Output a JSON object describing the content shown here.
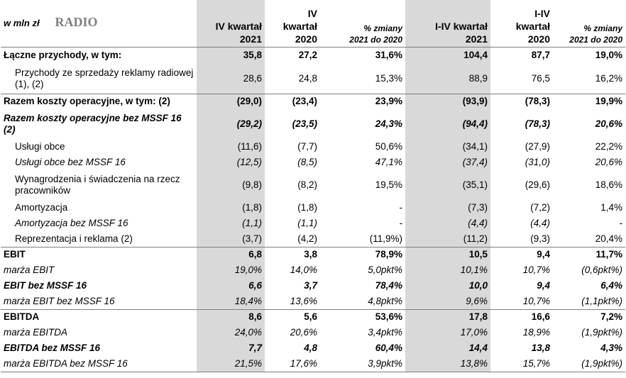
{
  "header": {
    "unit": "w mln zł",
    "segment": "RADIO",
    "cols": [
      [
        "IV kwartał",
        "2021"
      ],
      [
        "IV",
        "kwartał",
        "2020"
      ],
      [
        "% zmiany",
        "2021 do 2020"
      ],
      [
        "I-IV kwartał",
        "2021"
      ],
      [
        "I-IV",
        "kwartał",
        "2020"
      ],
      [
        "% zmiany",
        "2021 do 2020"
      ]
    ]
  },
  "rows": [
    {
      "label": "Łączne przychody, w tym:",
      "style": "b",
      "indent": false,
      "values": [
        "35,8",
        "27,2",
        "31,6%",
        "104,4",
        "87,7",
        "19,0%"
      ]
    },
    {
      "label": "Przychody ze sprzedaży reklamy radiowej (1), (2)",
      "style": "",
      "indent": true,
      "values": [
        "28,6",
        "24,8",
        "15,3%",
        "88,9",
        "76,5",
        "16,2%"
      ]
    },
    {
      "label": "Razem koszty operacyjne, w tym: (2)",
      "style": "b",
      "indent": false,
      "values": [
        "(29,0)",
        "(23,4)",
        "23,9%",
        "(93,9)",
        "(78,3)",
        "19,9%"
      ]
    },
    {
      "label": "Razem koszty operacyjne bez MSSF 16 (2)",
      "style": "bi",
      "indent": false,
      "values": [
        "(29,2)",
        "(23,5)",
        "24,3%",
        "(94,4)",
        "(78,3)",
        "20,6%"
      ]
    },
    {
      "label": "Usługi obce",
      "style": "",
      "indent": true,
      "values": [
        "(11,6)",
        "(7,7)",
        "50,6%",
        "(34,1)",
        "(27,9)",
        "22,2%"
      ]
    },
    {
      "label": "Usługi obce bez MSSF 16",
      "style": "i",
      "indent": true,
      "values": [
        "(12,5)",
        "(8,5)",
        "47,1%",
        "(37,4)",
        "(31,0)",
        "20,6%"
      ]
    },
    {
      "label": "Wynagrodzenia i świadczenia na rzecz pracowników",
      "style": "",
      "indent": true,
      "values": [
        "(9,8)",
        "(8,2)",
        "19,5%",
        "(35,1)",
        "(29,6)",
        "18,6%"
      ]
    },
    {
      "label": "Amortyzacja",
      "style": "",
      "indent": true,
      "values": [
        "(1,8)",
        "(1,8)",
        "-",
        "(7,3)",
        "(7,2)",
        "1,4%"
      ]
    },
    {
      "label": "Amortyzacja bez MSSF 16",
      "style": "i",
      "indent": true,
      "values": [
        "(1,1)",
        "(1,1)",
        "-",
        "(4,4)",
        "(4,4)",
        "-"
      ]
    },
    {
      "label": "Reprezentacja i reklama (2)",
      "style": "",
      "indent": true,
      "values": [
        "(3,7)",
        "(4,2)",
        "(11,9%)",
        "(11,2)",
        "(9,3)",
        "20,4%"
      ]
    },
    {
      "label": "EBIT",
      "style": "b",
      "indent": false,
      "values": [
        "6,8",
        "3,8",
        "78,9%",
        "10,5",
        "9,4",
        "11,7%"
      ]
    },
    {
      "label": "marża EBIT",
      "style": "i",
      "indent": false,
      "values": [
        "19,0%",
        "14,0%",
        "5,0pkt%",
        "10,1%",
        "10,7%",
        "(0,6pkt%)"
      ]
    },
    {
      "label": "EBIT bez MSSF 16",
      "style": "bi",
      "indent": false,
      "values": [
        "6,6",
        "3,7",
        "78,4%",
        "10,0",
        "9,4",
        "6,4%"
      ]
    },
    {
      "label": "marża EBIT bez MSSF 16",
      "style": "i",
      "indent": false,
      "values": [
        "18,4%",
        "13,6%",
        "4,8pkt%",
        "9,6%",
        "10,7%",
        "(1,1pkt%)"
      ]
    },
    {
      "label": "EBITDA",
      "style": "b",
      "indent": false,
      "values": [
        "8,6",
        "5,6",
        "53,6%",
        "17,8",
        "16,6",
        "7,2%"
      ]
    },
    {
      "label": "marża EBITDA",
      "style": "i",
      "indent": false,
      "values": [
        "24,0%",
        "20,6%",
        "3,4pkt%",
        "17,0%",
        "18,9%",
        "(1,9pkt%)"
      ]
    },
    {
      "label": "EBITDA bez MSSF 16",
      "style": "bi",
      "indent": false,
      "values": [
        "7,7",
        "4,8",
        "60,4%",
        "14,4",
        "13,8",
        "4,3%"
      ]
    },
    {
      "label": "marża EBITDA bez MSSF 16",
      "style": "i",
      "indent": false,
      "values": [
        "21,5%",
        "17,6%",
        "3,9pkt%",
        "13,8%",
        "15,7%",
        "(1,9pkt%)"
      ]
    }
  ]
}
